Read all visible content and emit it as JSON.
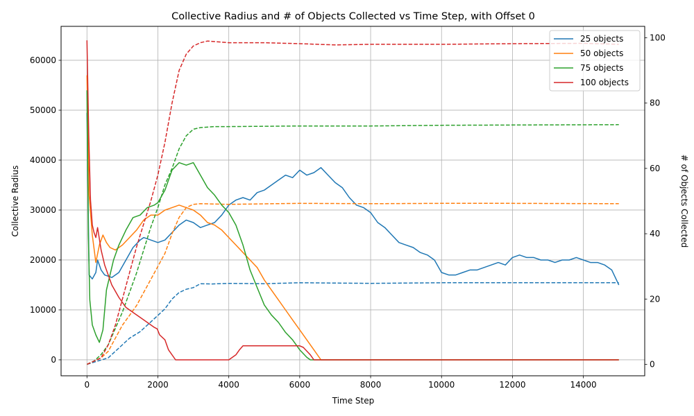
{
  "chart_data": {
    "type": "line",
    "title": "Collective Radius and # of Objects Collected vs Time Step, with Offset 0",
    "xlabel": "Time Step",
    "ylabel_left": "Collective Radius",
    "ylabel_right": "# of Objects Collected",
    "xlim": [
      -730,
      15730
    ],
    "ylim_left": [
      -3200,
      66800
    ],
    "ylim_right": [
      -3.5,
      103.5
    ],
    "x_ticks": [
      0,
      2000,
      4000,
      6000,
      8000,
      10000,
      12000,
      14000
    ],
    "y_ticks_left": [
      0,
      10000,
      20000,
      30000,
      40000,
      50000,
      60000
    ],
    "y_ticks_right": [
      0,
      20,
      40,
      60,
      80,
      100
    ],
    "grid": true,
    "legend_position": "upper-right",
    "series": [
      {
        "name": "25 objects",
        "color": "#1f77b4",
        "radius": {
          "x": [
            0,
            60,
            150,
            250,
            300,
            400,
            500,
            700,
            900,
            1100,
            1300,
            1500,
            1600,
            1800,
            2000,
            2200,
            2400,
            2600,
            2800,
            3000,
            3200,
            3400,
            3600,
            3800,
            4000,
            4200,
            4400,
            4600,
            4800,
            5000,
            5200,
            5400,
            5600,
            5800,
            6000,
            6200,
            6400,
            6600,
            6800,
            7000,
            7200,
            7400,
            7600,
            7800,
            8000,
            8200,
            8400,
            8600,
            8800,
            9000,
            9200,
            9400,
            9600,
            9800,
            10000,
            10200,
            10400,
            10600,
            10800,
            11000,
            11200,
            11400,
            11600,
            11800,
            12000,
            12200,
            12400,
            12600,
            12800,
            13000,
            13200,
            13400,
            13600,
            13800,
            14000,
            14200,
            14400,
            14600,
            14800,
            15000
          ],
          "y": [
            49500,
            17000,
            16200,
            17500,
            20000,
            18000,
            17000,
            16500,
            17500,
            20000,
            22500,
            24000,
            24500,
            24000,
            23500,
            24000,
            25500,
            27000,
            28000,
            27500,
            26500,
            27000,
            27500,
            29000,
            31000,
            32000,
            32500,
            32000,
            33500,
            34000,
            35000,
            36000,
            37000,
            36500,
            38000,
            37000,
            37500,
            38500,
            37000,
            35500,
            34500,
            32500,
            31000,
            30500,
            29500,
            27500,
            26500,
            25000,
            23500,
            23000,
            22500,
            21500,
            21000,
            20000,
            17500,
            17000,
            17000,
            17500,
            18000,
            18000,
            18500,
            19000,
            19500,
            19000,
            20500,
            21000,
            20500,
            20500,
            20000,
            20000,
            19500,
            20000,
            20000,
            20500,
            20000,
            19500,
            19500,
            19000,
            18000,
            15000
          ]
        },
        "collected": {
          "x": [
            0,
            300,
            600,
            900,
            1200,
            1500,
            1800,
            2000,
            2200,
            2400,
            2600,
            2800,
            3000,
            3200,
            3500,
            4000,
            5000,
            6000,
            8000,
            10000,
            12000,
            15000
          ],
          "y": [
            0,
            1,
            2,
            5,
            8,
            10,
            13,
            15,
            17,
            20,
            22,
            23,
            23.5,
            24.7,
            24.6,
            24.8,
            24.7,
            25,
            24.8,
            25,
            25,
            25
          ]
        }
      },
      {
        "name": "50 objects",
        "color": "#ff7f0e",
        "radius": {
          "x": [
            0,
            60,
            150,
            250,
            350,
            450,
            550,
            650,
            800,
            1000,
            1200,
            1400,
            1600,
            1800,
            2000,
            2200,
            2400,
            2600,
            2800,
            3000,
            3200,
            3400,
            3600,
            3800,
            4000,
            4200,
            4400,
            4600,
            4800,
            5000,
            5200,
            5400,
            5600,
            5800,
            6000,
            6200,
            6400,
            6600,
            7000,
            8000,
            10000,
            12000,
            15000
          ],
          "y": [
            57000,
            33000,
            25000,
            19500,
            23000,
            25000,
            23500,
            22500,
            22000,
            23000,
            24500,
            26000,
            28000,
            29000,
            29000,
            30000,
            30500,
            31000,
            30500,
            30000,
            29000,
            27500,
            27000,
            26000,
            24500,
            23000,
            21500,
            20000,
            18500,
            16000,
            14000,
            12000,
            10000,
            8000,
            6000,
            4000,
            2000,
            0,
            0,
            0,
            0,
            0,
            0
          ]
        },
        "collected": {
          "x": [
            0,
            200,
            400,
            600,
            800,
            1000,
            1200,
            1400,
            1600,
            1800,
            2000,
            2200,
            2400,
            2600,
            2800,
            3000,
            3200,
            4000,
            6000,
            8000,
            10000,
            12000,
            15000
          ],
          "y": [
            0,
            1,
            2,
            4,
            8,
            12,
            15,
            18,
            22,
            26,
            30,
            34,
            40,
            45,
            48,
            49,
            49.2,
            49,
            49.3,
            49.2,
            49.3,
            49.3,
            49.2
          ]
        }
      },
      {
        "name": "75 objects",
        "color": "#2ca02c",
        "radius": {
          "x": [
            0,
            40,
            80,
            150,
            250,
            350,
            450,
            550,
            650,
            750,
            900,
            1100,
            1300,
            1500,
            1700,
            1900,
            2000,
            2200,
            2400,
            2600,
            2800,
            3000,
            3200,
            3400,
            3600,
            3800,
            4000,
            4200,
            4400,
            4600,
            4800,
            5000,
            5200,
            5400,
            5600,
            5800,
            6000,
            6200,
            6300,
            7000,
            8000,
            10000,
            12000,
            15000
          ],
          "y": [
            54000,
            25000,
            12000,
            7000,
            5000,
            3500,
            6000,
            14000,
            17000,
            20000,
            23000,
            26000,
            28500,
            29000,
            30500,
            31000,
            31500,
            34000,
            38000,
            39500,
            39000,
            39500,
            37000,
            34500,
            33000,
            31000,
            29500,
            27000,
            23000,
            18000,
            14500,
            11000,
            9000,
            7500,
            5500,
            4000,
            2000,
            500,
            0,
            0,
            0,
            0,
            0,
            0
          ]
        },
        "collected": {
          "x": [
            0,
            200,
            400,
            600,
            800,
            1000,
            1200,
            1400,
            1600,
            1800,
            2000,
            2200,
            2400,
            2600,
            2800,
            3000,
            3200,
            3600,
            4000,
            6000,
            8000,
            10000,
            12000,
            15000
          ],
          "y": [
            0,
            1,
            3,
            6,
            11,
            16,
            22,
            28,
            35,
            42,
            48,
            55,
            60,
            66,
            70,
            72,
            72.5,
            72.8,
            72.8,
            73,
            73,
            73.2,
            73.3,
            73.4
          ]
        }
      },
      {
        "name": "100 objects",
        "color": "#d62728",
        "radius": {
          "x": [
            0,
            50,
            100,
            150,
            200,
            250,
            300,
            400,
            500,
            700,
            900,
            1100,
            1300,
            1500,
            1700,
            1900,
            1980,
            2050,
            2200,
            2300,
            2500,
            3000,
            3500,
            4000,
            4100,
            4200,
            4300,
            4400,
            5000,
            6000,
            6100,
            6300,
            6400,
            7000,
            8000,
            10000,
            12000,
            15000
          ],
          "y": [
            64000,
            45000,
            32000,
            27000,
            25500,
            24500,
            26500,
            22000,
            19000,
            15000,
            12500,
            10500,
            9500,
            8500,
            7500,
            6500,
            6200,
            5000,
            4000,
            2000,
            0,
            0,
            0,
            0,
            500,
            1000,
            2000,
            2800,
            2800,
            2800,
            2500,
            1000,
            0,
            0,
            0,
            0,
            0,
            0
          ]
        },
        "collected": {
          "x": [
            0,
            200,
            400,
            600,
            800,
            1000,
            1200,
            1400,
            1600,
            1800,
            2000,
            2200,
            2400,
            2600,
            2800,
            3000,
            3200,
            3400,
            4000,
            5000,
            6000,
            7000,
            8000,
            10000,
            12000,
            14000,
            15000
          ],
          "y": [
            0,
            1,
            2,
            6,
            12,
            20,
            28,
            36,
            43,
            50,
            58,
            68,
            80,
            90,
            95,
            97.5,
            98.5,
            99,
            98.5,
            98.5,
            98.2,
            97.8,
            98,
            98,
            98.2,
            98.3,
            98
          ]
        }
      }
    ]
  }
}
